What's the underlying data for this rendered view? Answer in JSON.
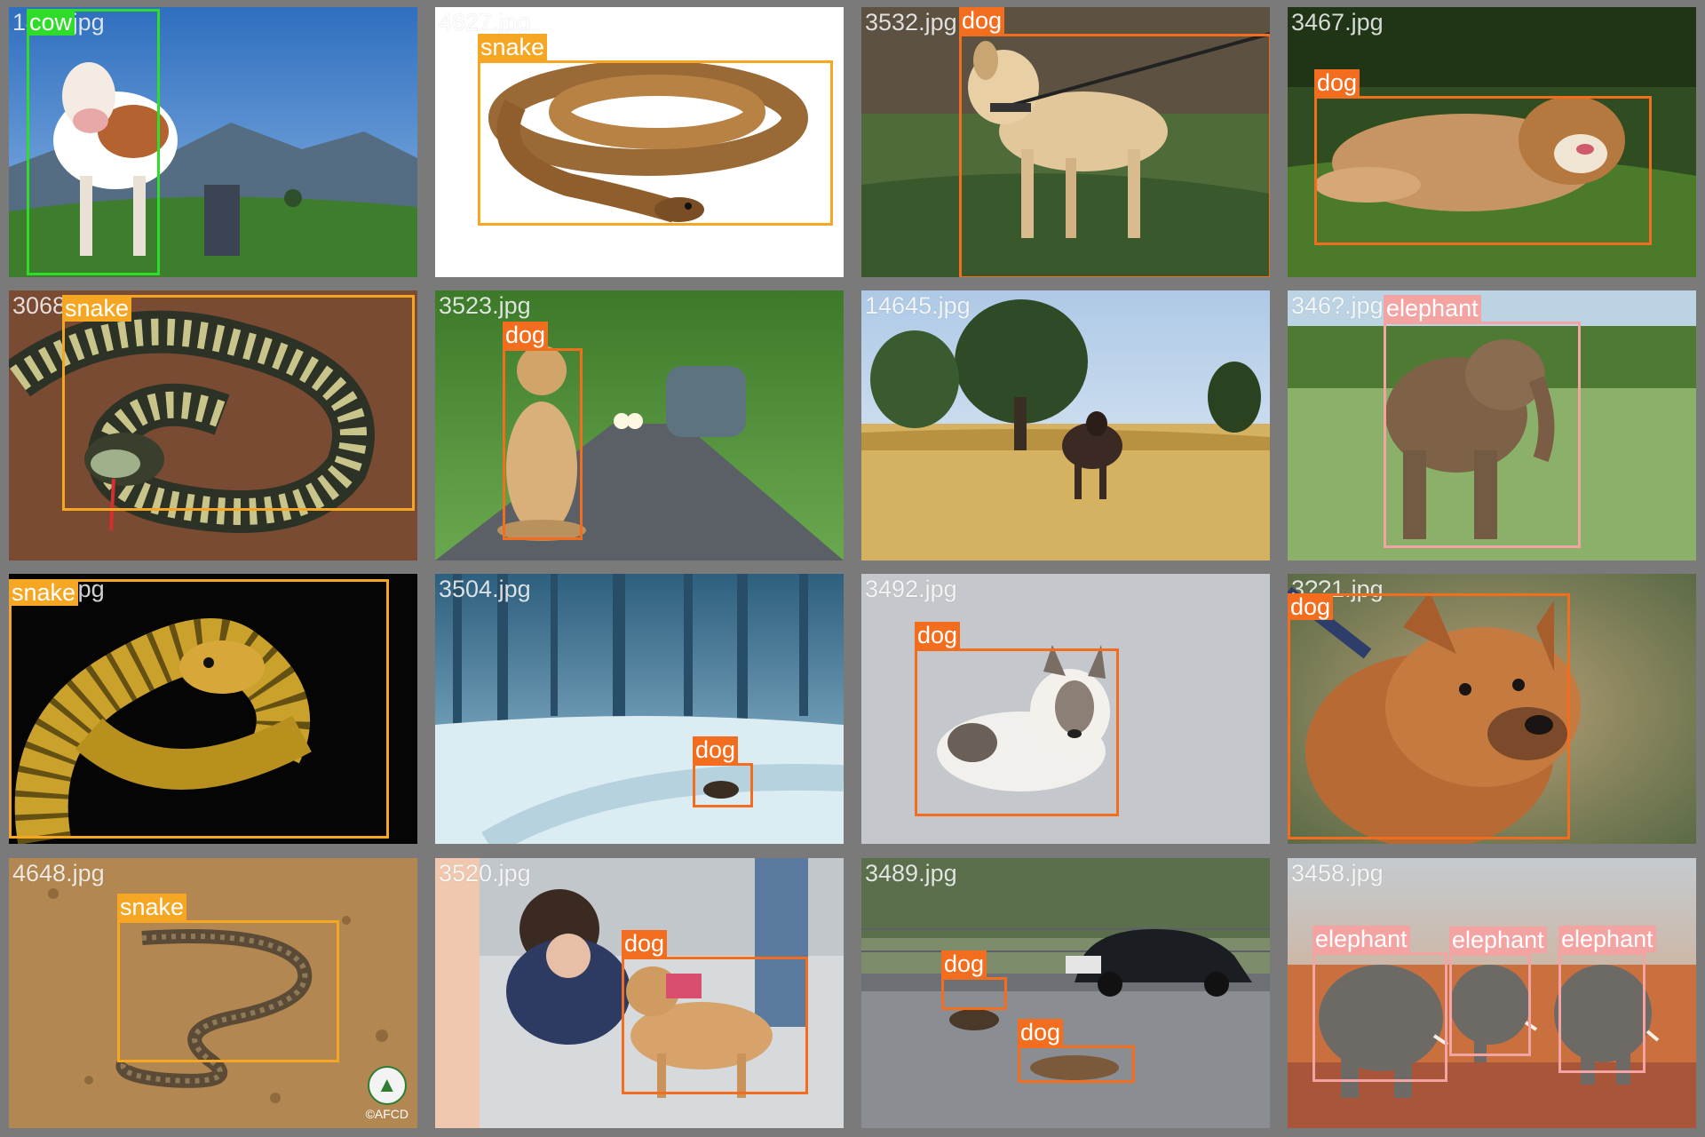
{
  "colors": {
    "cow": "#2fdc2a",
    "snake": "#f5a623",
    "dog": "#f26d1e",
    "elephant": "#f4a3a3"
  },
  "tiles": [
    {
      "name": "14??.jpg",
      "scene": "cow",
      "detections": [
        {
          "label": "cow"
        }
      ]
    },
    {
      "name": "4627.jpg",
      "scene": "snake-white",
      "detections": [
        {
          "label": "snake"
        }
      ]
    },
    {
      "name": "3532.jpg",
      "scene": "dog-leash",
      "detections": [
        {
          "label": "dog"
        }
      ]
    },
    {
      "name": "3467.jpg",
      "scene": "dog-lying",
      "detections": [
        {
          "label": "dog"
        }
      ]
    },
    {
      "name": "3068.jpg",
      "scene": "snake-coil",
      "detections": [
        {
          "label": "snake"
        }
      ]
    },
    {
      "name": "3523.jpg",
      "scene": "dog-road",
      "detections": [
        {
          "label": "dog"
        }
      ]
    },
    {
      "name": "14645.jpg",
      "scene": "field-cow",
      "detections": []
    },
    {
      "name": "346?.jpg",
      "scene": "elephant-grass",
      "detections": [
        {
          "label": "elephant"
        }
      ]
    },
    {
      "name": "4615.jpg",
      "scene": "snake-yellow",
      "detections": [
        {
          "label": "snake"
        }
      ]
    },
    {
      "name": "3504.jpg",
      "scene": "forest-snow",
      "detections": [
        {
          "label": "dog"
        }
      ]
    },
    {
      "name": "3492.jpg",
      "scene": "dog-white",
      "detections": [
        {
          "label": "dog"
        }
      ]
    },
    {
      "name": "3??1.jpg",
      "scene": "dog-face",
      "detections": [
        {
          "label": "dog"
        }
      ]
    },
    {
      "name": "4648.jpg",
      "scene": "snake-dirt",
      "detections": [
        {
          "label": "snake"
        }
      ],
      "watermark": "©AFCD"
    },
    {
      "name": "3520.jpg",
      "scene": "woman-dog",
      "detections": [
        {
          "label": "dog"
        }
      ]
    },
    {
      "name": "3489.jpg",
      "scene": "street-dogs",
      "detections": [
        {
          "label": "dog"
        },
        {
          "label": "dog"
        }
      ]
    },
    {
      "name": "3458.jpg",
      "scene": "elephant-herd",
      "detections": [
        {
          "label": "elephant"
        },
        {
          "label": "elephant"
        },
        {
          "label": "elephant"
        }
      ]
    }
  ]
}
